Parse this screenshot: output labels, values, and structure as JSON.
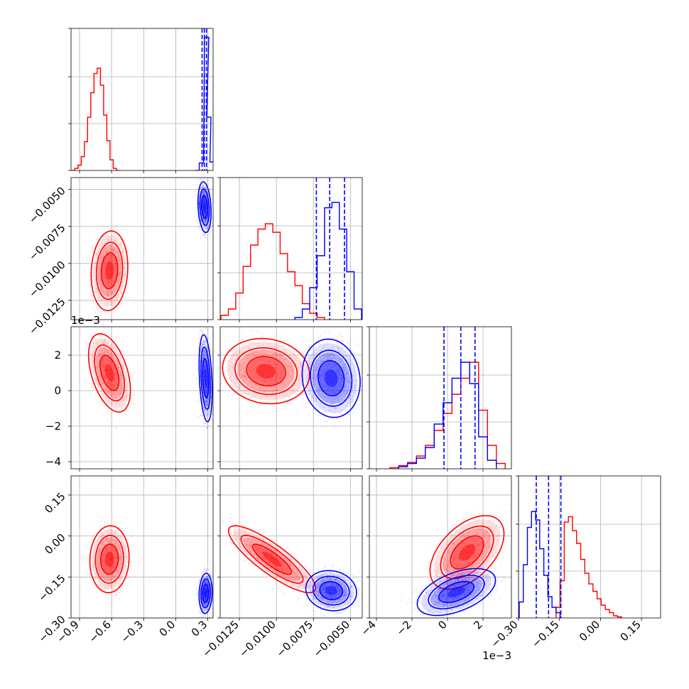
{
  "chart_data": {
    "type": "corner",
    "n_params": 4,
    "grid": true,
    "series": [
      {
        "color": "#ff0000"
      },
      {
        "color": "#0000ff"
      }
    ],
    "params": [
      {
        "range": [
          -0.98,
          0.35
        ],
        "ticks": [
          -0.9,
          -0.6,
          -0.3,
          0.0,
          0.3
        ],
        "tick_labels": [
          "−0.9",
          "−0.6",
          "−0.3",
          "0.0",
          "0.3"
        ],
        "offset_label": ""
      },
      {
        "range": [
          -0.0138,
          -0.0042
        ],
        "ticks": [
          -0.0125,
          -0.01,
          -0.0075,
          -0.005
        ],
        "tick_labels": [
          "−0.0125",
          "−0.0100",
          "−0.0075",
          "−0.0050"
        ],
        "offset_label": ""
      },
      {
        "range": [
          -4.4,
          3.6
        ],
        "ticks": [
          -4,
          -2,
          0,
          2
        ],
        "tick_labels": [
          "−4",
          "−2",
          "0",
          "2"
        ],
        "offset_label": "1e−3"
      },
      {
        "range": [
          -0.3,
          0.22
        ],
        "ticks": [
          -0.3,
          -0.15,
          0.0,
          0.15
        ],
        "tick_labels": [
          "−0.30",
          "−0.15",
          "0.00",
          "0.15"
        ],
        "offset_label": ""
      }
    ],
    "marginals": [
      {
        "red_hist": [
          [
            -0.96,
            0
          ],
          [
            -0.93,
            0.02
          ],
          [
            -0.9,
            0.05
          ],
          [
            -0.87,
            0.13
          ],
          [
            -0.84,
            0.27
          ],
          [
            -0.81,
            0.5
          ],
          [
            -0.78,
            0.73
          ],
          [
            -0.75,
            0.91
          ],
          [
            -0.72,
            0.96
          ],
          [
            -0.69,
            0.8
          ],
          [
            -0.66,
            0.52
          ],
          [
            -0.63,
            0.28
          ],
          [
            -0.6,
            0.1
          ],
          [
            -0.57,
            0.02
          ],
          [
            -0.54,
            0.0
          ]
        ],
        "blue_hist": [
          [
            0.2,
            0.0
          ],
          [
            0.24,
            0.07
          ],
          [
            0.29,
            1.25
          ],
          [
            0.31,
            0.5
          ],
          [
            0.34,
            0.08
          ]
        ],
        "blue_quantiles": [
          0.247,
          0.268,
          0.288
        ]
      },
      {
        "red_hist": [
          [
            -0.0135,
            0.04
          ],
          [
            -0.013,
            0.1
          ],
          [
            -0.0125,
            0.25
          ],
          [
            -0.012,
            0.5
          ],
          [
            -0.0115,
            0.7
          ],
          [
            -0.011,
            0.85
          ],
          [
            -0.0105,
            0.9
          ],
          [
            -0.01,
            0.82
          ],
          [
            -0.0095,
            0.62
          ],
          [
            -0.009,
            0.45
          ],
          [
            -0.0085,
            0.32
          ],
          [
            -0.008,
            0.15
          ],
          [
            -0.0075,
            0.06
          ],
          [
            -0.007,
            0.02
          ]
        ],
        "blue_hist": [
          [
            -0.0085,
            0.02
          ],
          [
            -0.008,
            0.1
          ],
          [
            -0.0075,
            0.3
          ],
          [
            -0.007,
            0.6
          ],
          [
            -0.0065,
            1.05
          ],
          [
            -0.006,
            1.1
          ],
          [
            -0.0055,
            0.85
          ],
          [
            -0.005,
            0.45
          ],
          [
            -0.0045,
            0.1
          ]
        ],
        "blue_quantiles": [
          -0.0073,
          -0.0064,
          -0.0054
        ]
      },
      {
        "red_hist": [
          [
            -3.0,
            0.01
          ],
          [
            -2.5,
            0.03
          ],
          [
            -2.0,
            0.06
          ],
          [
            -1.5,
            0.12
          ],
          [
            -1.0,
            0.22
          ],
          [
            -0.5,
            0.36
          ],
          [
            0.0,
            0.52
          ],
          [
            0.5,
            0.7
          ],
          [
            1.0,
            0.85
          ],
          [
            1.5,
            1.0
          ],
          [
            2.0,
            0.55
          ],
          [
            2.5,
            0.22
          ],
          [
            3.0,
            0.05
          ]
        ],
        "blue_hist": [
          [
            -2.5,
            0.02
          ],
          [
            -2.0,
            0.05
          ],
          [
            -1.5,
            0.1
          ],
          [
            -1.0,
            0.2
          ],
          [
            -0.5,
            0.42
          ],
          [
            0.0,
            0.62
          ],
          [
            0.5,
            0.85
          ],
          [
            1.0,
            1.0
          ],
          [
            1.5,
            0.8
          ],
          [
            2.0,
            0.3
          ],
          [
            2.5,
            0.08
          ]
        ],
        "blue_quantiles": [
          -0.2,
          0.75,
          1.55
        ]
      },
      {
        "red_hist": [
          [
            -0.155,
            0.1
          ],
          [
            -0.14,
            0.35
          ],
          [
            -0.125,
            0.9
          ],
          [
            -0.11,
            0.95
          ],
          [
            -0.095,
            0.82
          ],
          [
            -0.08,
            0.7
          ],
          [
            -0.065,
            0.55
          ],
          [
            -0.05,
            0.42
          ],
          [
            -0.035,
            0.32
          ],
          [
            -0.02,
            0.25
          ],
          [
            -0.005,
            0.18
          ],
          [
            0.01,
            0.12
          ],
          [
            0.025,
            0.08
          ],
          [
            0.04,
            0.05
          ],
          [
            0.055,
            0.02
          ],
          [
            0.07,
            0.01
          ]
        ],
        "blue_hist": [
          [
            -0.29,
            0.15
          ],
          [
            -0.275,
            0.5
          ],
          [
            -0.26,
            0.85
          ],
          [
            -0.245,
            1.0
          ],
          [
            -0.23,
            0.92
          ],
          [
            -0.215,
            0.65
          ],
          [
            -0.2,
            0.4
          ],
          [
            -0.185,
            0.2
          ],
          [
            -0.17,
            0.1
          ],
          [
            -0.155,
            0.05
          ]
        ],
        "blue_quantiles": [
          -0.235,
          -0.19,
          -0.145
        ]
      }
    ],
    "joint": [
      {
        "xp": 0,
        "yp": 1,
        "red": {
          "cx": -0.62,
          "cy": -0.0105,
          "sx": 0.07,
          "sy": 0.0011,
          "rho": 0.1
        },
        "blue": {
          "cx": 0.27,
          "cy": -0.0062,
          "sx": 0.025,
          "sy": 0.0007,
          "rho": -0.2
        }
      },
      {
        "xp": 0,
        "yp": 2,
        "red": {
          "cx": -0.62,
          "cy": 1.0,
          "sx": 0.08,
          "sy": 0.9,
          "rho": -0.45
        },
        "blue": {
          "cx": 0.28,
          "cy": 0.7,
          "sx": 0.025,
          "sy": 1.0,
          "rho": -0.3
        }
      },
      {
        "xp": 0,
        "yp": 3,
        "red": {
          "cx": -0.62,
          "cy": -0.085,
          "sx": 0.075,
          "sy": 0.05,
          "rho": 0.05
        },
        "blue": {
          "cx": 0.28,
          "cy": -0.21,
          "sx": 0.025,
          "sy": 0.03,
          "rho": 0.1
        }
      },
      {
        "xp": 1,
        "yp": 2,
        "red": {
          "cx": -0.0107,
          "cy": 1.1,
          "sx": 0.0012,
          "sy": 0.75,
          "rho": -0.1
        },
        "blue": {
          "cx": -0.0063,
          "cy": 0.7,
          "sx": 0.0008,
          "sy": 0.9,
          "rho": -0.1
        }
      },
      {
        "xp": 1,
        "yp": 3,
        "red": {
          "cx": -0.0103,
          "cy": -0.085,
          "sx": 0.0012,
          "sy": 0.05,
          "rho": -0.85
        },
        "blue": {
          "cx": -0.0063,
          "cy": -0.2,
          "sx": 0.0007,
          "sy": 0.03,
          "rho": -0.1
        }
      },
      {
        "xp": 2,
        "yp": 3,
        "red": {
          "cx": 1.1,
          "cy": -0.06,
          "sx": 0.85,
          "sy": 0.055,
          "rho": 0.5
        },
        "blue": {
          "cx": 0.5,
          "cy": -0.205,
          "sx": 0.9,
          "sy": 0.035,
          "rho": 0.5
        }
      }
    ]
  }
}
